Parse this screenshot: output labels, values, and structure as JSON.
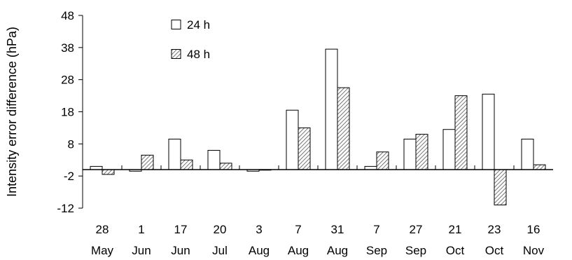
{
  "chart_data": {
    "type": "bar",
    "title": "",
    "xlabel": "",
    "ylabel": "Intensity error difference (hPa)",
    "ylim": [
      -12,
      48
    ],
    "yticks": [
      48,
      38,
      28,
      18,
      8,
      -2,
      -12
    ],
    "categories": [
      {
        "day": "28",
        "month": "May"
      },
      {
        "day": "1",
        "month": "Jun"
      },
      {
        "day": "17",
        "month": "Jun"
      },
      {
        "day": "20",
        "month": "Jul"
      },
      {
        "day": "3",
        "month": "Aug"
      },
      {
        "day": "7",
        "month": "Aug"
      },
      {
        "day": "31",
        "month": "Aug"
      },
      {
        "day": "7",
        "month": "Sep"
      },
      {
        "day": "27",
        "month": "Sep"
      },
      {
        "day": "21",
        "month": "Oct"
      },
      {
        "day": "23",
        "month": "Oct"
      },
      {
        "day": "16",
        "month": "Nov"
      }
    ],
    "series": [
      {
        "name": "24 h",
        "fill": "open",
        "values": [
          1,
          -0.5,
          9.5,
          6,
          -0.5,
          18.5,
          37.5,
          1,
          9.5,
          12.5,
          23.5,
          9.5
        ]
      },
      {
        "name": "48 h",
        "fill": "hatched",
        "values": [
          -1.5,
          4.5,
          3,
          2,
          0,
          13,
          25.5,
          5.5,
          11,
          23,
          -11,
          1.5
        ]
      }
    ],
    "grid": false,
    "legend_position": "top-left"
  }
}
